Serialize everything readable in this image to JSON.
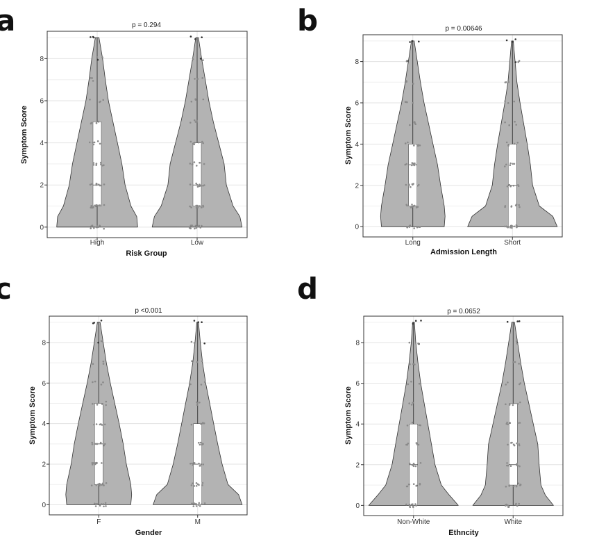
{
  "figure": {
    "panel_letters": [
      "a",
      "b",
      "c",
      "d"
    ]
  },
  "chart_data": [
    {
      "type": "violin",
      "panel": "a",
      "title": "p =  0.294",
      "xlabel": "Risk Group",
      "ylabel": "Symptom Score",
      "categories": [
        "High",
        "Low"
      ],
      "yticks": [
        0,
        2,
        4,
        6,
        8
      ],
      "ylim": [
        -0.5,
        9.3
      ],
      "grid": true,
      "violins": [
        {
          "category": "High",
          "median": 2,
          "q1": 1,
          "q3": 5,
          "min": 0,
          "max": 9,
          "density_y": [
            0,
            0.5,
            1,
            2,
            3,
            4,
            5,
            6,
            7,
            8,
            9
          ],
          "density_w": [
            0.9,
            0.88,
            0.75,
            0.62,
            0.55,
            0.45,
            0.35,
            0.25,
            0.18,
            0.12,
            0.04
          ]
        },
        {
          "category": "Low",
          "median": 2,
          "q1": 1,
          "q3": 4,
          "min": 0,
          "max": 9,
          "density_y": [
            0,
            0.5,
            1,
            2,
            3,
            4,
            5,
            6,
            7,
            8,
            9
          ],
          "density_w": [
            1.0,
            0.95,
            0.8,
            0.65,
            0.6,
            0.48,
            0.36,
            0.26,
            0.18,
            0.1,
            0.03
          ]
        }
      ]
    },
    {
      "type": "violin",
      "panel": "b",
      "title": "p =  0.00646",
      "xlabel": "Admission Length",
      "ylabel": "Symptom Score",
      "categories": [
        "Long",
        "Short"
      ],
      "yticks": [
        0,
        2,
        4,
        6,
        8
      ],
      "ylim": [
        -0.5,
        9.3
      ],
      "grid": true,
      "violins": [
        {
          "category": "Long",
          "median": 3,
          "q1": 1,
          "q3": 4,
          "min": 0,
          "max": 9,
          "density_y": [
            0,
            0.5,
            1,
            2,
            3,
            4,
            5,
            6,
            7,
            8,
            9
          ],
          "density_w": [
            0.7,
            0.72,
            0.7,
            0.62,
            0.55,
            0.45,
            0.35,
            0.25,
            0.17,
            0.1,
            0.03
          ]
        },
        {
          "category": "Short",
          "median": 2,
          "q1": 0,
          "q3": 4,
          "min": 0,
          "max": 9,
          "density_y": [
            0,
            0.5,
            1,
            2,
            3,
            4,
            5,
            6,
            7,
            8,
            9
          ],
          "density_w": [
            1.0,
            0.9,
            0.6,
            0.45,
            0.4,
            0.33,
            0.25,
            0.17,
            0.1,
            0.06,
            0.02
          ]
        }
      ]
    },
    {
      "type": "violin",
      "panel": "c",
      "title": "p   <0.001",
      "xlabel": "Gender",
      "ylabel": "Symptom Score",
      "categories": [
        "F",
        "M"
      ],
      "yticks": [
        0,
        2,
        4,
        6,
        8
      ],
      "ylim": [
        -0.5,
        9.3
      ],
      "grid": true,
      "violins": [
        {
          "category": "F",
          "median": 3,
          "q1": 1,
          "q3": 5,
          "min": 0,
          "max": 9,
          "density_y": [
            0,
            0.5,
            1,
            2,
            3,
            4,
            5,
            6,
            7,
            8,
            9
          ],
          "density_w": [
            0.72,
            0.74,
            0.72,
            0.62,
            0.55,
            0.46,
            0.36,
            0.26,
            0.17,
            0.1,
            0.03
          ]
        },
        {
          "category": "M",
          "median": 2,
          "q1": 0,
          "q3": 4,
          "min": 0,
          "max": 9,
          "density_y": [
            0,
            0.5,
            1,
            2,
            3,
            4,
            5,
            6,
            7,
            8,
            9
          ],
          "density_w": [
            1.0,
            0.92,
            0.68,
            0.55,
            0.45,
            0.36,
            0.27,
            0.18,
            0.11,
            0.06,
            0.02
          ]
        }
      ]
    },
    {
      "type": "violin",
      "panel": "d",
      "title": "p =  0.0652",
      "xlabel": "Ethncity",
      "ylabel": "Symptom Score",
      "categories": [
        "Non-White",
        "White"
      ],
      "yticks": [
        0,
        2,
        4,
        6,
        8
      ],
      "ylim": [
        -0.5,
        9.3
      ],
      "grid": true,
      "violins": [
        {
          "category": "Non-White",
          "median": 2,
          "q1": 0,
          "q3": 4,
          "min": 0,
          "max": 9,
          "density_y": [
            0,
            0.5,
            1,
            2,
            3,
            4,
            5,
            6,
            7,
            8,
            9
          ],
          "density_w": [
            1.0,
            0.8,
            0.62,
            0.48,
            0.4,
            0.32,
            0.24,
            0.16,
            0.1,
            0.05,
            0.02
          ]
        },
        {
          "category": "White",
          "median": 2,
          "q1": 1,
          "q3": 5,
          "min": 0,
          "max": 9,
          "density_y": [
            0,
            0.5,
            1,
            2,
            3,
            4,
            5,
            6,
            7,
            8,
            9
          ],
          "density_w": [
            0.9,
            0.72,
            0.62,
            0.58,
            0.55,
            0.45,
            0.35,
            0.25,
            0.17,
            0.1,
            0.03
          ]
        }
      ]
    }
  ]
}
